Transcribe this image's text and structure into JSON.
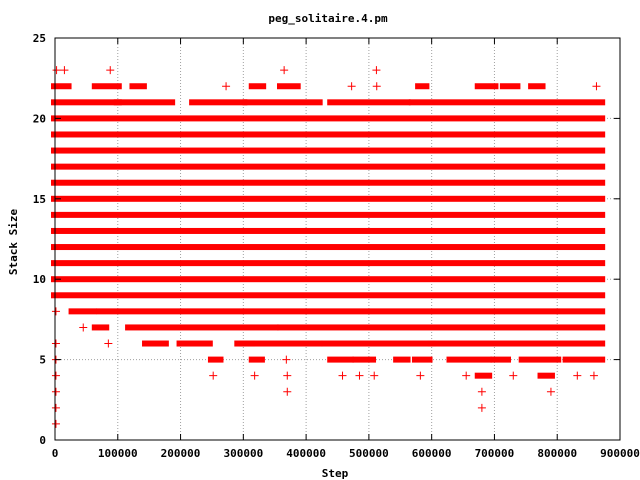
{
  "chart_data": {
    "type": "scatter",
    "title": "peg_solitaire.4.pm",
    "xlabel": "Step",
    "ylabel": "Stack Size",
    "xlim": [
      0,
      900000
    ],
    "ylim": [
      0,
      25
    ],
    "x_ticks": [
      0,
      100000,
      200000,
      300000,
      400000,
      500000,
      600000,
      700000,
      800000,
      900000
    ],
    "x_tick_labels": [
      "0",
      "100000",
      "200000",
      "300000",
      "400000",
      "500000",
      "600000",
      "700000",
      "800000",
      "900000"
    ],
    "y_ticks": [
      0,
      5,
      10,
      15,
      20,
      25
    ],
    "y_tick_labels": [
      "0",
      "5",
      "10",
      "15",
      "20",
      "25"
    ],
    "grid": true,
    "legend": "none",
    "marker": "plus",
    "color": "#ff0000",
    "x_max_data": 870000,
    "bands": [
      {
        "y": 1,
        "segments": [
          [
            0,
            3000
          ]
        ]
      },
      {
        "y": 2,
        "segments": [
          [
            0,
            3000
          ],
          [
            680000,
            680000
          ]
        ]
      },
      {
        "y": 3,
        "segments": [
          [
            0,
            3000
          ],
          [
            370000,
            370000
          ],
          [
            680000,
            680000
          ],
          [
            790000,
            790000
          ]
        ]
      },
      {
        "y": 4,
        "segments": [
          [
            0,
            3000
          ],
          [
            252000,
            252000
          ],
          [
            318000,
            318000
          ],
          [
            370000,
            370000
          ],
          [
            458000,
            458000
          ],
          [
            485000,
            485000
          ],
          [
            505000,
            512000
          ],
          [
            582000,
            582000
          ],
          [
            655000,
            655000
          ],
          [
            675000,
            690000
          ],
          [
            730000,
            730000
          ],
          [
            775000,
            790000
          ],
          [
            832000,
            832000
          ],
          [
            855000,
            862000
          ]
        ]
      },
      {
        "y": 5,
        "segments": [
          [
            0,
            3000
          ],
          [
            250000,
            262000
          ],
          [
            315000,
            328000
          ],
          [
            365000,
            372000
          ],
          [
            440000,
            470000
          ],
          [
            480000,
            505000
          ],
          [
            545000,
            560000
          ],
          [
            575000,
            595000
          ],
          [
            630000,
            690000
          ],
          [
            700000,
            720000
          ],
          [
            745000,
            800000
          ],
          [
            815000,
            870000
          ]
        ]
      },
      {
        "y": 6,
        "segments": [
          [
            0,
            3000
          ],
          [
            85000,
            85000
          ],
          [
            145000,
            175000
          ],
          [
            200000,
            245000
          ],
          [
            292000,
            312000
          ],
          [
            300000,
            420000
          ],
          [
            430000,
            600000
          ],
          [
            600000,
            870000
          ]
        ]
      },
      {
        "y": 7,
        "segments": [
          [
            45000,
            45000
          ],
          [
            65000,
            80000
          ],
          [
            118000,
            350000
          ],
          [
            360000,
            870000
          ]
        ]
      },
      {
        "y": 8,
        "segments": [
          [
            0,
            3000
          ],
          [
            28000,
            60000
          ],
          [
            72000,
            870000
          ]
        ]
      },
      {
        "y": 9,
        "segments": [
          [
            0,
            870000
          ]
        ]
      },
      {
        "y": 10,
        "segments": [
          [
            0,
            870000
          ]
        ]
      },
      {
        "y": 11,
        "segments": [
          [
            0,
            870000
          ]
        ]
      },
      {
        "y": 12,
        "segments": [
          [
            0,
            870000
          ]
        ]
      },
      {
        "y": 13,
        "segments": [
          [
            0,
            870000
          ]
        ]
      },
      {
        "y": 14,
        "segments": [
          [
            0,
            870000
          ]
        ]
      },
      {
        "y": 15,
        "segments": [
          [
            0,
            870000
          ]
        ]
      },
      {
        "y": 16,
        "segments": [
          [
            0,
            870000
          ]
        ]
      },
      {
        "y": 17,
        "segments": [
          [
            0,
            870000
          ]
        ]
      },
      {
        "y": 18,
        "segments": [
          [
            0,
            870000
          ]
        ]
      },
      {
        "y": 19,
        "segments": [
          [
            0,
            870000
          ]
        ]
      },
      {
        "y": 20,
        "segments": [
          [
            0,
            870000
          ]
        ]
      },
      {
        "y": 21,
        "segments": [
          [
            0,
            100000
          ],
          [
            100000,
            185000
          ],
          [
            220000,
            300000
          ],
          [
            305000,
            420000
          ],
          [
            440000,
            560000
          ],
          [
            570000,
            870000
          ]
        ]
      },
      {
        "y": 22,
        "segments": [
          [
            0,
            20000
          ],
          [
            65000,
            100000
          ],
          [
            125000,
            140000
          ],
          [
            270000,
            275000
          ],
          [
            315000,
            330000
          ],
          [
            360000,
            385000
          ],
          [
            470000,
            475000
          ],
          [
            510000,
            515000
          ],
          [
            580000,
            590000
          ],
          [
            675000,
            700000
          ],
          [
            715000,
            735000
          ],
          [
            760000,
            775000
          ],
          [
            860000,
            865000
          ]
        ]
      },
      {
        "y": 23,
        "segments": [
          [
            0,
            5000
          ],
          [
            15000,
            15000
          ],
          [
            88000,
            88000
          ],
          [
            365000,
            365000
          ],
          [
            512000,
            512000
          ]
        ]
      }
    ]
  }
}
